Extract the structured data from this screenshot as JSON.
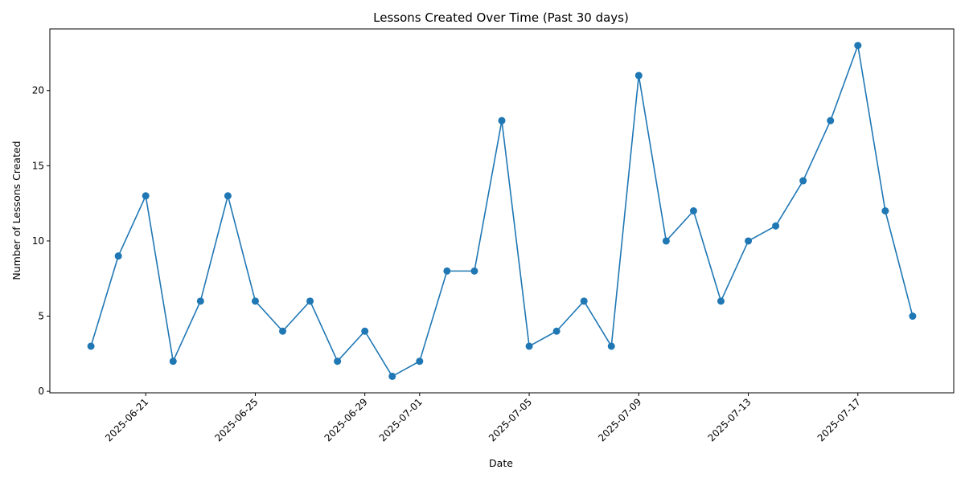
{
  "chart_data": {
    "type": "line",
    "title": "Lessons Created Over Time (Past 30 days)",
    "xlabel": "Date",
    "ylabel": "Number of Lessons Created",
    "x": [
      "2025-06-19",
      "2025-06-20",
      "2025-06-21",
      "2025-06-22",
      "2025-06-23",
      "2025-06-24",
      "2025-06-25",
      "2025-06-26",
      "2025-06-27",
      "2025-06-28",
      "2025-06-29",
      "2025-06-30",
      "2025-07-01",
      "2025-07-02",
      "2025-07-03",
      "2025-07-04",
      "2025-07-05",
      "2025-07-06",
      "2025-07-07",
      "2025-07-08",
      "2025-07-09",
      "2025-07-10",
      "2025-07-11",
      "2025-07-12",
      "2025-07-13",
      "2025-07-14",
      "2025-07-15",
      "2025-07-16",
      "2025-07-17",
      "2025-07-18",
      "2025-07-19"
    ],
    "values": [
      3,
      9,
      13,
      2,
      6,
      13,
      6,
      4,
      6,
      2,
      4,
      1,
      2,
      8,
      8,
      18,
      3,
      4,
      6,
      3,
      21,
      10,
      12,
      6,
      10,
      11,
      14,
      18,
      23,
      12,
      5
    ],
    "x_ticks": [
      "2025-06-21",
      "2025-06-25",
      "2025-06-29",
      "2025-07-01",
      "2025-07-05",
      "2025-07-09",
      "2025-07-13",
      "2025-07-17"
    ],
    "y_ticks": [
      0,
      5,
      10,
      15,
      20
    ],
    "ylim": [
      -0.1,
      24.1
    ],
    "xlim": [
      "2025-06-17T12:00",
      "2025-07-20T12:00"
    ],
    "grid": false,
    "legend": "none",
    "line_color": "#1f77b4",
    "marker": "circle"
  }
}
